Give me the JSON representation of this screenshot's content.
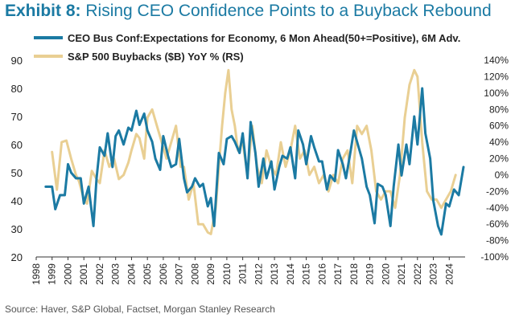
{
  "header": {
    "title_lead": "Exhibit 8:",
    "title_rest": "Rising CEO Confidence Points to a Buyback Rebound"
  },
  "footer": {
    "source": "Source: Haver, S&P Global, Factset, Morgan Stanley Research"
  },
  "chart_data": {
    "type": "line",
    "title": "Exhibit 8: Rising CEO Confidence Points to a Buyback Rebound",
    "x_tick_labels": [
      "1998",
      "1999",
      "2000",
      "2001",
      "2002",
      "2003",
      "2004",
      "2005",
      "2006",
      "2007",
      "2008",
      "2009",
      "2010",
      "2011",
      "2012",
      "2013",
      "2014",
      "2015",
      "2016",
      "2017",
      "2018",
      "2019",
      "2020",
      "2021",
      "2022",
      "2023",
      "2024"
    ],
    "xlim": [
      1998,
      2025
    ],
    "left_axis": {
      "ylim": [
        20,
        90
      ],
      "ticks": [
        20,
        30,
        40,
        50,
        60,
        70,
        80,
        90
      ]
    },
    "right_axis": {
      "ylim": [
        -100,
        140
      ],
      "ticks": [
        -100,
        -80,
        -60,
        -40,
        -20,
        0,
        20,
        40,
        60,
        80,
        100,
        120,
        140
      ],
      "tick_suffix": "%"
    },
    "grid": false,
    "legend_position": "top",
    "series": [
      {
        "name": "CEO Bus Conf:Expectations for Economy, 6 Mon Ahead(50+=Positive), 6M Adv.",
        "axis": "left",
        "color": "#1b7aa3",
        "x": [
          1998.6,
          1999.0,
          1999.2,
          1999.5,
          1999.8,
          2000.0,
          2000.2,
          2000.5,
          2000.8,
          2001.0,
          2001.3,
          2001.6,
          2001.8,
          2002.0,
          2002.3,
          2002.5,
          2002.8,
          2003.0,
          2003.2,
          2003.5,
          2003.8,
          2004.0,
          2004.3,
          2004.5,
          2004.8,
          2005.0,
          2005.3,
          2005.5,
          2005.8,
          2006.0,
          2006.3,
          2006.5,
          2006.8,
          2007.0,
          2007.3,
          2007.5,
          2007.8,
          2008.0,
          2008.3,
          2008.5,
          2008.8,
          2009.0,
          2009.2,
          2009.5,
          2009.8,
          2010.0,
          2010.3,
          2010.5,
          2010.8,
          2011.0,
          2011.3,
          2011.5,
          2011.8,
          2012.0,
          2012.3,
          2012.5,
          2012.8,
          2013.0,
          2013.3,
          2013.5,
          2013.8,
          2014.0,
          2014.3,
          2014.5,
          2014.8,
          2015.0,
          2015.3,
          2015.5,
          2015.8,
          2016.0,
          2016.3,
          2016.5,
          2016.8,
          2017.0,
          2017.3,
          2017.5,
          2017.8,
          2018.0,
          2018.3,
          2018.5,
          2018.8,
          2019.0,
          2019.3,
          2019.5,
          2019.8,
          2020.0,
          2020.3,
          2020.5,
          2020.8,
          2021.0,
          2021.3,
          2021.5,
          2021.8,
          2022.0,
          2022.3,
          2022.5,
          2022.8,
          2023.0,
          2023.3,
          2023.5,
          2023.8,
          2024.0,
          2024.3,
          2024.6,
          2024.9
        ],
        "y": [
          45,
          45,
          37,
          42,
          42,
          53,
          50,
          48,
          48,
          39,
          45,
          31,
          48,
          59,
          56,
          64,
          52,
          63,
          65,
          60,
          66,
          65,
          72,
          67,
          71,
          65,
          61,
          55,
          51,
          63,
          56,
          52,
          53,
          62,
          48,
          43,
          45,
          48,
          45,
          46,
          38,
          41,
          31,
          57,
          53,
          62,
          63,
          61,
          57,
          64,
          48,
          68,
          57,
          45,
          55,
          48,
          54,
          44,
          52,
          56,
          55,
          59,
          48,
          65,
          60,
          53,
          63,
          59,
          54,
          54,
          44,
          49,
          47,
          58,
          53,
          48,
          58,
          65,
          59,
          55,
          45,
          42,
          32,
          46,
          45,
          42,
          31,
          45,
          60,
          49,
          60,
          53,
          70,
          60,
          80,
          64,
          55,
          40,
          31,
          28,
          39,
          38,
          44,
          42,
          52
        ]
      },
      {
        "name": "S&P 500 Buybacks ($B) YoY % (RS)",
        "axis": "right",
        "color": "#e9cf93",
        "x": [
          1999.0,
          1999.3,
          1999.6,
          1999.9,
          2000.2,
          2000.5,
          2000.7,
          2001.0,
          2001.2,
          2001.5,
          2001.8,
          2002.0,
          2002.3,
          2002.6,
          2002.9,
          2003.2,
          2003.5,
          2003.8,
          2004.0,
          2004.3,
          2004.5,
          2004.8,
          2005.0,
          2005.3,
          2005.6,
          2005.9,
          2006.2,
          2006.5,
          2006.8,
          2007.1,
          2007.3,
          2007.6,
          2007.9,
          2008.2,
          2008.5,
          2008.8,
          2009.0,
          2009.3,
          2009.5,
          2009.7,
          2009.9,
          2010.1,
          2010.3,
          2010.5,
          2010.7,
          2011.0,
          2011.3,
          2011.6,
          2011.9,
          2012.2,
          2012.5,
          2012.8,
          2013.1,
          2013.4,
          2013.7,
          2014.0,
          2014.3,
          2014.6,
          2014.9,
          2015.2,
          2015.5,
          2015.8,
          2016.1,
          2016.4,
          2016.7,
          2017.0,
          2017.3,
          2017.6,
          2017.9,
          2018.2,
          2018.5,
          2018.8,
          2019.1,
          2019.4,
          2019.7,
          2020.0,
          2020.3,
          2020.6,
          2020.9,
          2021.2,
          2021.5,
          2021.8,
          2022.0,
          2022.3,
          2022.6,
          2022.9,
          2023.2,
          2023.5,
          2023.8,
          2024.1,
          2024.4
        ],
        "y": [
          28,
          -18,
          40,
          42,
          20,
          0,
          -8,
          -30,
          -35,
          5,
          -5,
          -10,
          30,
          10,
          20,
          -5,
          0,
          15,
          30,
          50,
          45,
          20,
          70,
          80,
          60,
          40,
          20,
          40,
          60,
          10,
          10,
          -30,
          -10,
          -60,
          -60,
          -70,
          -72,
          -40,
          10,
          60,
          100,
          128,
          80,
          60,
          30,
          40,
          0,
          60,
          10,
          -10,
          30,
          10,
          0,
          40,
          10,
          30,
          60,
          20,
          30,
          0,
          10,
          -10,
          0,
          -20,
          0,
          -10,
          20,
          30,
          -10,
          60,
          50,
          60,
          30,
          -20,
          -30,
          -20,
          -20,
          -40,
          0,
          70,
          110,
          128,
          120,
          40,
          -20,
          -30,
          -30,
          -40,
          -30,
          -20,
          0
        ]
      }
    ]
  }
}
